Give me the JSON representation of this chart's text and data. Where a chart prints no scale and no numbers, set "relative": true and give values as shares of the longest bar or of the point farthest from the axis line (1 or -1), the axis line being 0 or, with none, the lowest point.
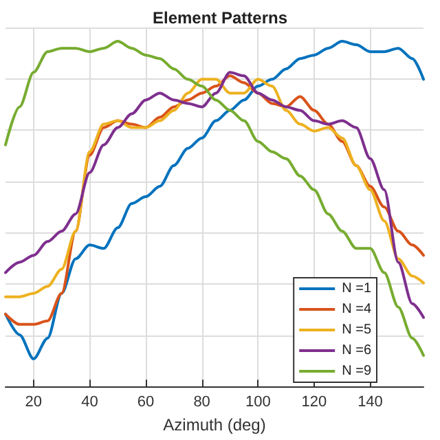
{
  "chart_data": {
    "type": "line",
    "title": "Element Patterns",
    "xlabel": "Azimuth (deg)",
    "relative": true,
    "x": [
      10,
      15,
      20,
      25,
      30,
      35,
      40,
      45,
      50,
      55,
      60,
      65,
      70,
      75,
      80,
      85,
      90,
      95,
      100,
      105,
      110,
      115,
      120,
      125,
      130,
      135,
      140,
      145,
      150,
      155,
      159
    ],
    "xlim": [
      10,
      159
    ],
    "xticks": [
      20,
      40,
      60,
      80,
      100,
      120,
      140
    ],
    "series": [
      {
        "name": "N =1",
        "color": "#0072bd",
        "values": [
          0.21,
          0.15,
          0.08,
          0.14,
          0.27,
          0.37,
          0.41,
          0.4,
          0.46,
          0.53,
          0.55,
          0.58,
          0.64,
          0.69,
          0.72,
          0.77,
          0.8,
          0.83,
          0.87,
          0.89,
          0.92,
          0.95,
          0.96,
          0.98,
          1.0,
          0.99,
          0.97,
          0.97,
          0.98,
          0.95,
          0.89
        ]
      },
      {
        "name": "N =4",
        "color": "#d95319",
        "values": [
          0.21,
          0.18,
          0.18,
          0.19,
          0.27,
          0.45,
          0.67,
          0.75,
          0.77,
          0.76,
          0.75,
          0.78,
          0.81,
          0.83,
          0.85,
          0.87,
          0.9,
          0.88,
          0.85,
          0.82,
          0.81,
          0.84,
          0.8,
          0.76,
          0.71,
          0.64,
          0.58,
          0.52,
          0.45,
          0.41,
          0.38
        ]
      },
      {
        "name": "N =5",
        "color": "#edb120",
        "values": [
          0.26,
          0.26,
          0.27,
          0.29,
          0.34,
          0.45,
          0.68,
          0.76,
          0.77,
          0.75,
          0.75,
          0.77,
          0.8,
          0.85,
          0.89,
          0.89,
          0.85,
          0.85,
          0.89,
          0.87,
          0.8,
          0.76,
          0.74,
          0.75,
          0.72,
          0.64,
          0.57,
          0.48,
          0.37,
          0.32,
          0.3
        ]
      },
      {
        "name": "N =6",
        "color": "#7e2f8e",
        "values": [
          0.33,
          0.36,
          0.38,
          0.42,
          0.45,
          0.5,
          0.62,
          0.7,
          0.75,
          0.79,
          0.83,
          0.85,
          0.83,
          0.82,
          0.81,
          0.85,
          0.91,
          0.9,
          0.85,
          0.83,
          0.81,
          0.8,
          0.77,
          0.76,
          0.77,
          0.75,
          0.66,
          0.57,
          0.36,
          0.24,
          0.2
        ]
      },
      {
        "name": "N =9",
        "color": "#77ac30",
        "values": [
          0.7,
          0.81,
          0.91,
          0.97,
          0.98,
          0.98,
          0.97,
          0.98,
          1.0,
          0.98,
          0.96,
          0.95,
          0.92,
          0.89,
          0.87,
          0.83,
          0.8,
          0.77,
          0.71,
          0.68,
          0.66,
          0.61,
          0.57,
          0.5,
          0.45,
          0.4,
          0.4,
          0.33,
          0.23,
          0.14,
          0.09
        ]
      }
    ],
    "grid": true,
    "legend": "bottom right",
    "marker": "none",
    "line_style": "solid"
  }
}
